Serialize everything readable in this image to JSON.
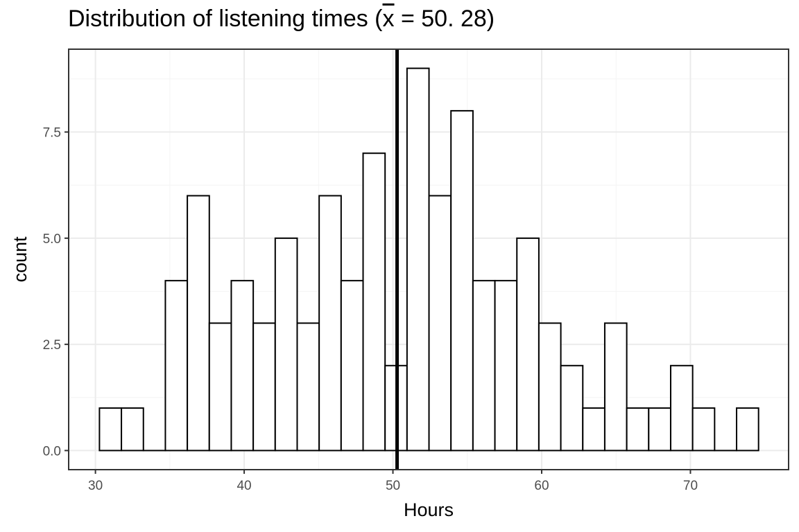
{
  "chart_data": {
    "type": "bar",
    "title_prefix": "Distribution of listening times (",
    "title_symbol": "x",
    "title_suffix": " = 50. 28)",
    "xlabel": "Hours",
    "ylabel": "count",
    "xlim": [
      28.2,
      76.6
    ],
    "ylim": [
      -0.45,
      9.45
    ],
    "x_ticks": [
      30,
      40,
      50,
      60,
      70
    ],
    "x_tick_labels": [
      "30",
      "40",
      "50",
      "60",
      "70"
    ],
    "y_ticks": [
      0,
      2.5,
      5,
      7.5
    ],
    "y_tick_labels": [
      "0.0",
      "2.5",
      "5.0",
      "7.5"
    ],
    "bin_start": 30.27,
    "bin_width": 1.477,
    "counts": [
      1,
      1,
      0,
      4,
      6,
      3,
      4,
      3,
      5,
      3,
      6,
      4,
      7,
      2,
      9,
      6,
      8,
      4,
      4,
      5,
      3,
      2,
      1,
      3,
      1,
      1,
      2,
      1,
      0,
      1
    ],
    "mean": 50.28,
    "grid": true,
    "legend": "none",
    "colors": {
      "bar_fill": "#ffffff",
      "bar_stroke": "#000000",
      "grid_major": "#ebebeb",
      "grid_minor": "#f4f4f4",
      "mean_line": "#000000",
      "panel_border": "#333333",
      "axis_text": "#4d4d4d"
    }
  }
}
